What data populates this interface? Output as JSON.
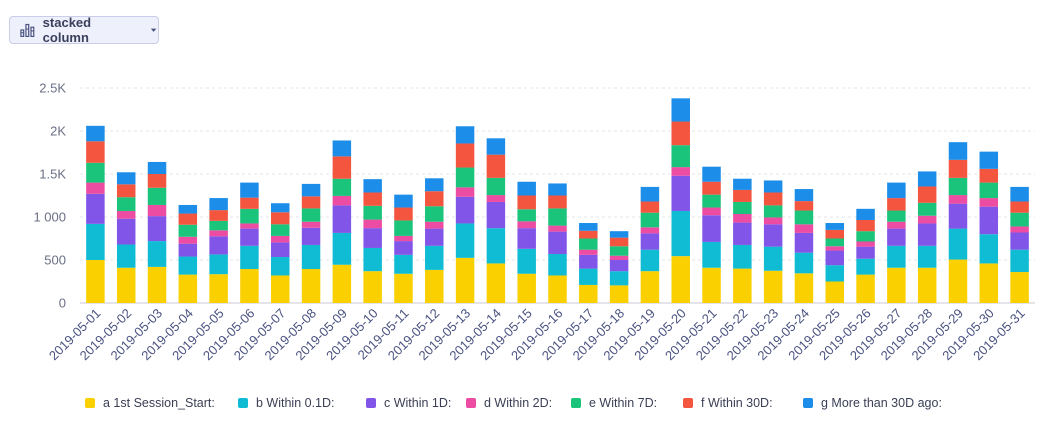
{
  "toolbar": {
    "chart_type_label": "stacked column",
    "chart_type_icon": "bar-chart-icon",
    "dropdown_icon": "caret-down-icon"
  },
  "chart_data": {
    "type": "bar",
    "stacked": true,
    "title": "",
    "xlabel": "",
    "ylabel": "",
    "ylim": [
      0,
      2500
    ],
    "y_ticks": [
      {
        "value": 0,
        "label": "0"
      },
      {
        "value": 500,
        "label": "500"
      },
      {
        "value": 1000,
        "label": "1 000"
      },
      {
        "value": 1500,
        "label": "1.5K"
      },
      {
        "value": 2000,
        "label": "2K"
      },
      {
        "value": 2500,
        "label": "2.5K"
      }
    ],
    "grid": "horizontal dashed",
    "legend_position": "bottom",
    "categories": [
      "2019-05-01",
      "2019-05-02",
      "2019-05-03",
      "2019-05-04",
      "2019-05-05",
      "2019-05-06",
      "2019-05-07",
      "2019-05-08",
      "2019-05-09",
      "2019-05-10",
      "2019-05-11",
      "2019-05-12",
      "2019-05-13",
      "2019-05-14",
      "2019-05-15",
      "2019-05-16",
      "2019-05-17",
      "2019-05-18",
      "2019-05-19",
      "2019-05-20",
      "2019-05-21",
      "2019-05-22",
      "2019-05-23",
      "2019-05-24",
      "2019-05-25",
      "2019-05-26",
      "2019-05-27",
      "2019-05-28",
      "2019-05-29",
      "2019-05-30",
      "2019-05-31"
    ],
    "series": [
      {
        "name": "a 1st Session_Start:",
        "color": "#fad000",
        "values": [
          500,
          410,
          420,
          330,
          335,
          395,
          320,
          395,
          445,
          370,
          340,
          385,
          525,
          460,
          340,
          320,
          210,
          205,
          370,
          545,
          410,
          400,
          375,
          345,
          250,
          330,
          410,
          410,
          505,
          460,
          360
        ]
      },
      {
        "name": "b Within 0.1D:",
        "color": "#10bcd4",
        "values": [
          420,
          270,
          300,
          210,
          230,
          270,
          215,
          280,
          370,
          270,
          220,
          280,
          400,
          410,
          290,
          250,
          190,
          165,
          250,
          525,
          300,
          275,
          280,
          240,
          190,
          185,
          255,
          255,
          360,
          340,
          260
        ]
      },
      {
        "name": "c Within 1D:",
        "color": "#8155e8",
        "values": [
          350,
          300,
          290,
          150,
          210,
          200,
          170,
          200,
          320,
          230,
          160,
          200,
          310,
          305,
          240,
          260,
          160,
          130,
          190,
          410,
          310,
          260,
          260,
          230,
          170,
          140,
          200,
          260,
          290,
          320,
          200
        ]
      },
      {
        "name": "d Within 2D:",
        "color": "#ec4da2",
        "values": [
          130,
          90,
          130,
          80,
          70,
          60,
          75,
          70,
          110,
          100,
          60,
          80,
          110,
          80,
          80,
          70,
          60,
          50,
          70,
          100,
          90,
          100,
          80,
          100,
          50,
          60,
          80,
          90,
          100,
          100,
          70
        ]
      },
      {
        "name": "e Within 7D:",
        "color": "#1ac47a",
        "values": [
          230,
          160,
          200,
          140,
          110,
          170,
          135,
          155,
          200,
          160,
          180,
          180,
          230,
          200,
          140,
          200,
          130,
          110,
          170,
          255,
          150,
          140,
          140,
          160,
          90,
          120,
          130,
          150,
          200,
          180,
          160
        ]
      },
      {
        "name": "f Within 30D:",
        "color": "#f4553f",
        "values": [
          250,
          150,
          160,
          130,
          125,
          130,
          140,
          140,
          260,
          155,
          150,
          175,
          280,
          270,
          160,
          150,
          90,
          100,
          130,
          275,
          150,
          140,
          150,
          110,
          100,
          130,
          145,
          190,
          210,
          160,
          130
        ]
      },
      {
        "name": "g More than 30D ago:",
        "color": "#1c8de8",
        "values": [
          180,
          140,
          140,
          100,
          140,
          175,
          105,
          145,
          185,
          155,
          150,
          150,
          200,
          190,
          160,
          140,
          90,
          75,
          170,
          270,
          175,
          130,
          140,
          140,
          80,
          130,
          180,
          175,
          205,
          200,
          170
        ]
      }
    ]
  }
}
